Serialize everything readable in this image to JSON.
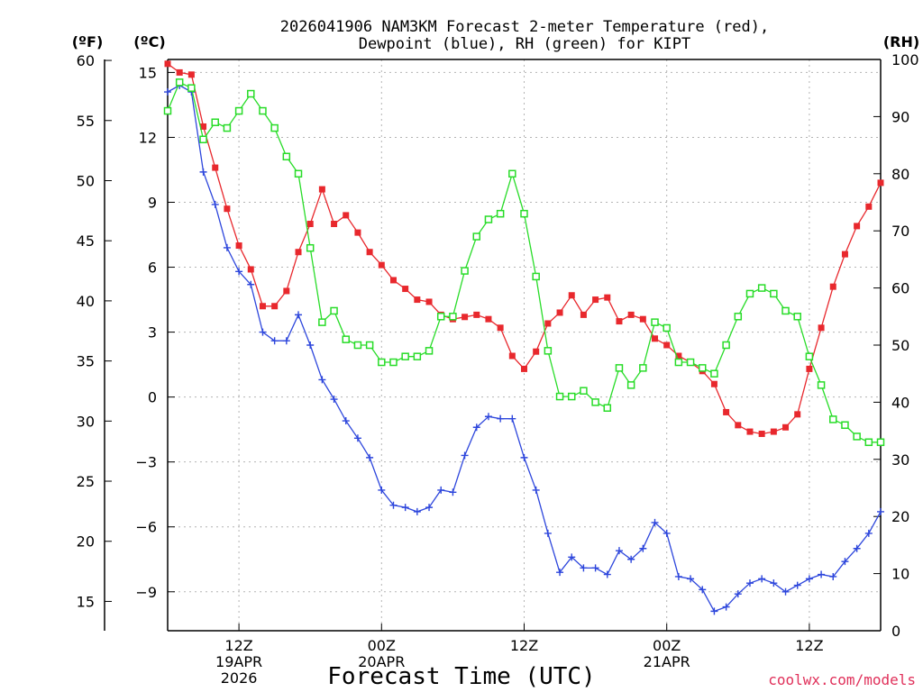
{
  "chart_data": {
    "type": "line",
    "title_line1": "2026041906 NAM3KM Forecast 2-meter Temperature (red),",
    "title_line2": "Dewpoint (blue), RH (green) for KIPT",
    "xlabel": "Forecast Time (UTC)",
    "credit": "coolwx.com/models",
    "units": {
      "left_f": "(ºF)",
      "left_c": "(ºC)",
      "right_rh": "(RH)"
    },
    "ylim_c": [
      -10.8,
      15.6
    ],
    "ylim_rh": [
      0,
      100
    ],
    "y_ticks_c": [
      "15",
      "12",
      "9",
      "6",
      "3",
      "0",
      "−3",
      "−6",
      "−9"
    ],
    "y_ticks_f": [
      "60",
      "55",
      "50",
      "45",
      "40",
      "35",
      "30",
      "25",
      "20",
      "15"
    ],
    "y_ticks_rh": [
      "100",
      "90",
      "80",
      "70",
      "60",
      "50",
      "40",
      "30",
      "20",
      "10",
      "0"
    ],
    "x_hours_range": [
      0,
      60
    ],
    "x_ticks": [
      {
        "label1": "12Z",
        "label2": "19APR",
        "label3": "2026"
      },
      {
        "label1": "00Z",
        "label2": "20APR",
        "label3": ""
      },
      {
        "label1": "12Z",
        "label2": "",
        "label3": ""
      },
      {
        "label1": "00Z",
        "label2": "21APR",
        "label3": ""
      },
      {
        "label1": "12Z",
        "label2": "",
        "label3": ""
      }
    ],
    "x_tick_hours": [
      6,
      18,
      30,
      42,
      54
    ],
    "series": [
      {
        "name": "2-meter Temperature (°C)",
        "color": "#e8282d",
        "marker": "filled-square",
        "axis": "celsius",
        "values": [
          15.4,
          15.0,
          14.9,
          12.5,
          10.6,
          8.7,
          7.0,
          5.9,
          4.2,
          4.2,
          4.9,
          6.7,
          8.0,
          9.6,
          8.0,
          8.4,
          7.6,
          6.7,
          6.1,
          5.4,
          5.0,
          4.5,
          4.4,
          3.8,
          3.6,
          3.7,
          3.8,
          3.6,
          3.2,
          1.9,
          1.3,
          2.1,
          3.4,
          3.9,
          4.7,
          3.8,
          4.5,
          4.6,
          3.5,
          3.8,
          3.6,
          2.7,
          2.4,
          1.9,
          1.6,
          1.2,
          0.6,
          -0.7,
          -1.3,
          -1.6,
          -1.7,
          -1.6,
          -1.4,
          -0.8,
          1.3,
          3.2,
          5.1,
          6.6,
          7.9,
          8.8,
          9.9
        ]
      },
      {
        "name": "Dewpoint (°C)",
        "color": "#2d46dc",
        "marker": "plus",
        "axis": "celsius",
        "values": [
          14.1,
          14.4,
          14.1,
          10.4,
          8.9,
          6.9,
          5.8,
          5.2,
          3.0,
          2.6,
          2.6,
          3.8,
          2.4,
          0.8,
          -0.1,
          -1.1,
          -1.9,
          -2.8,
          -4.3,
          -5.0,
          -5.1,
          -5.3,
          -5.1,
          -4.3,
          -4.4,
          -2.7,
          -1.4,
          -0.9,
          -1.0,
          -1.0,
          -2.8,
          -4.3,
          -6.3,
          -8.1,
          -7.4,
          -7.9,
          -7.9,
          -8.2,
          -7.1,
          -7.5,
          -7.0,
          -5.8,
          -6.3,
          -8.3,
          -8.4,
          -8.9,
          -9.9,
          -9.7,
          -9.1,
          -8.6,
          -8.4,
          -8.6,
          -9.0,
          -8.7,
          -8.4,
          -8.2,
          -8.3,
          -7.6,
          -7.0,
          -6.3,
          -5.3
        ]
      },
      {
        "name": "RH (%)",
        "color": "#28dc28",
        "marker": "open-square",
        "axis": "rh",
        "values": [
          91,
          96,
          95,
          86,
          89,
          88,
          91,
          94,
          91,
          88,
          83,
          80,
          67,
          54,
          56,
          51,
          50,
          50,
          47,
          47,
          48,
          48,
          49,
          55,
          55,
          63,
          69,
          72,
          73,
          80,
          73,
          62,
          49,
          41,
          41,
          42,
          40,
          39,
          46,
          43,
          46,
          54,
          53,
          47,
          47,
          46,
          45,
          50,
          55,
          59,
          60,
          59,
          56,
          55,
          48,
          43,
          37,
          36,
          34,
          33,
          33
        ]
      }
    ]
  }
}
